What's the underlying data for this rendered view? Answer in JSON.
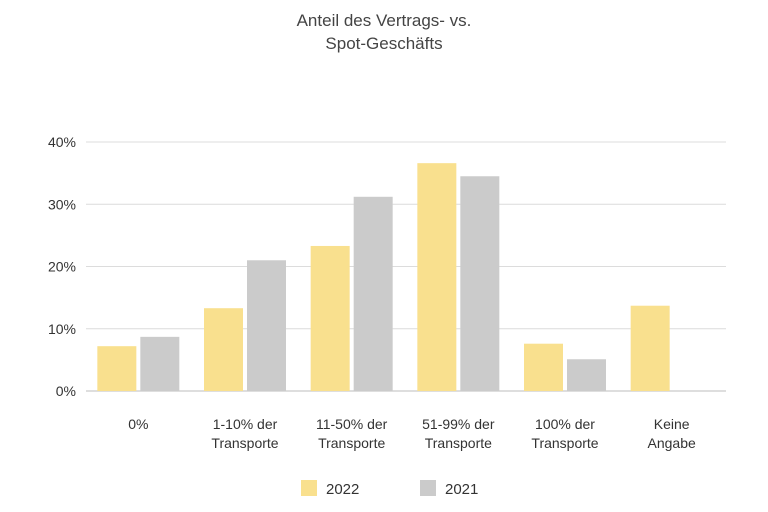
{
  "chart_data": {
    "type": "bar",
    "title": [
      "Anteil des Vertrags- vs.",
      "Spot-Geschäfts"
    ],
    "categories": [
      [
        "0%"
      ],
      [
        "1-10% der",
        "Transporte"
      ],
      [
        "11-50% der",
        "Transporte"
      ],
      [
        "51-99% der",
        "Transporte"
      ],
      [
        "100% der",
        "Transporte"
      ],
      [
        "Keine",
        "Angabe"
      ]
    ],
    "series": [
      {
        "name": "2022",
        "color": "#f9e08e",
        "values": [
          7.2,
          13.3,
          23.3,
          36.6,
          7.6,
          13.7
        ]
      },
      {
        "name": "2021",
        "color": "#cbcbcb",
        "values": [
          8.7,
          21.0,
          31.2,
          34.5,
          5.1,
          null
        ]
      }
    ],
    "ylim": [
      0,
      40
    ],
    "yticks": [
      0,
      10,
      20,
      30,
      40
    ],
    "ytick_labels": [
      "0%",
      "10%",
      "20%",
      "30%",
      "40%"
    ],
    "grid": true,
    "legend": "bottom-center"
  }
}
